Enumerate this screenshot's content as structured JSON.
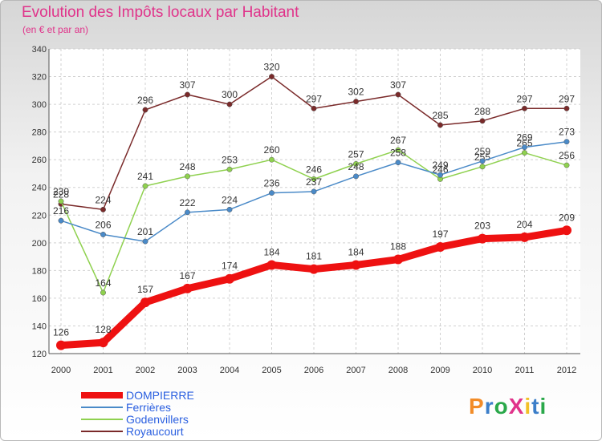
{
  "title": "Evolution des Impôts locaux par Habitant",
  "subtitle": "(en € et par an)",
  "logo": {
    "text": "ProXiti",
    "colors": [
      "#f28c28",
      "#3b7ec9",
      "#2aa84a",
      "#e0338a",
      "#f2c028",
      "#3b7ec9",
      "#2aa84a"
    ]
  },
  "chart_data": {
    "type": "line",
    "title": "Evolution des Impôts locaux par Habitant",
    "subtitle": "(en € et par an)",
    "xlabel": "",
    "ylabel": "",
    "categories": [
      "2000",
      "2001",
      "2002",
      "2003",
      "2004",
      "2005",
      "2006",
      "2007",
      "2008",
      "2009",
      "2010",
      "2011",
      "2012"
    ],
    "ylim": [
      120,
      340
    ],
    "yticks": [
      "120",
      "140",
      "160",
      "180",
      "200",
      "220",
      "240",
      "260",
      "280",
      "300",
      "320",
      "340"
    ],
    "grid": true,
    "legend_position": "bottom-left",
    "series": [
      {
        "name": "Royaucourt",
        "color": "#7a2a2a",
        "values": [
          228,
          224,
          296,
          307,
          300,
          320,
          297,
          302,
          307,
          285,
          288,
          297,
          297
        ],
        "labels": [
          "228",
          "224",
          "296",
          "307",
          "300",
          "320",
          "297",
          "302",
          "307",
          "285",
          "288",
          "297",
          "297"
        ]
      },
      {
        "name": "Godenvillers",
        "color": "#8fd14f",
        "values": [
          230,
          164,
          241,
          248,
          253,
          260,
          246,
          257,
          267,
          246,
          255,
          265,
          256
        ],
        "labels": [
          "230",
          "164",
          "241",
          "248",
          "253",
          "260",
          "246",
          "257",
          "267",
          "246",
          "255",
          "265",
          "256"
        ]
      },
      {
        "name": "Ferrières",
        "color": "#4a8ac8",
        "values": [
          216,
          206,
          201,
          222,
          224,
          236,
          237,
          248,
          258,
          249,
          259,
          269,
          273
        ],
        "labels": [
          "216",
          "206",
          "201",
          "222",
          "224",
          "236",
          "237",
          "248",
          "258",
          "249",
          "259",
          "269",
          "273"
        ]
      },
      {
        "name": "DOMPIERRE",
        "color": "#ee1111",
        "values": [
          126,
          128,
          157,
          167,
          174,
          184,
          181,
          184,
          188,
          197,
          203,
          204,
          209
        ],
        "labels": [
          "126",
          "128",
          "157",
          "167",
          "174",
          "184",
          "181",
          "184",
          "188",
          "197",
          "203",
          "204",
          "209"
        ]
      }
    ]
  }
}
